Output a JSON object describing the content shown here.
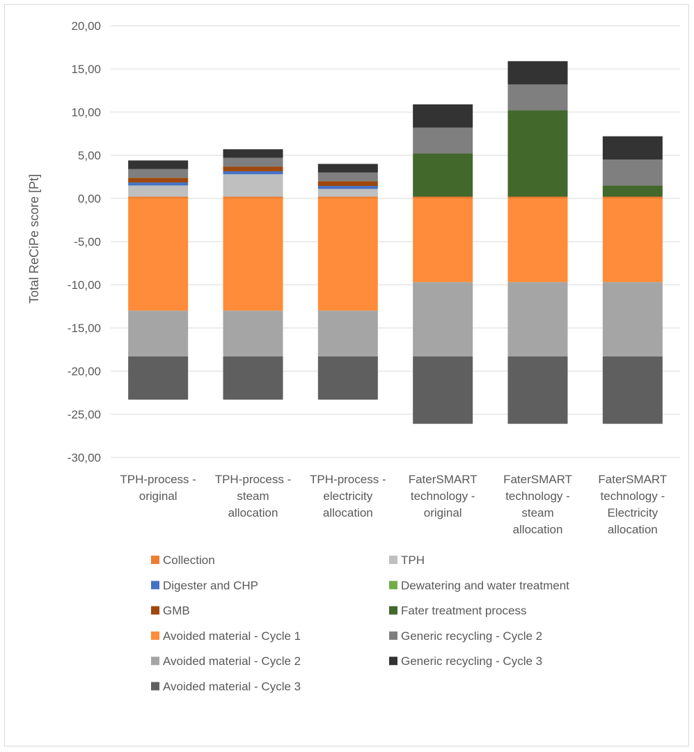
{
  "chart_data": {
    "type": "bar",
    "stacked": true,
    "title": "",
    "xlabel": "",
    "ylabel": "Total ReCiPe score [Pt]",
    "ylim": [
      -30,
      20
    ],
    "yticks": [
      20,
      15,
      10,
      5,
      0,
      -5,
      -10,
      -15,
      -20,
      -25,
      -30
    ],
    "ytick_labels": [
      "20,00",
      "15,00",
      "10,00",
      "5,00",
      "0,00",
      "-5,00",
      "-10,00",
      "-15,00",
      "-20,00",
      "-25,00",
      "-30,00"
    ],
    "grid": true,
    "legend_position": "bottom",
    "categories": [
      [
        "TPH-process -",
        "original"
      ],
      [
        "TPH-process -",
        "steam",
        "allocation"
      ],
      [
        "TPH-process -",
        "electricity",
        "allocation"
      ],
      [
        "FaterSMART",
        "technology -",
        "original"
      ],
      [
        "FaterSMART",
        "technology -",
        "steam",
        "allocation"
      ],
      [
        "FaterSMART",
        "technology -",
        "Electricity",
        "allocation"
      ]
    ],
    "series": [
      {
        "name": "Collection",
        "color": "#ed7d31",
        "values": [
          0.2,
          0.2,
          0.2,
          0.2,
          0.2,
          0.2
        ]
      },
      {
        "name": "TPH",
        "color": "#bfbfbf",
        "values": [
          1.3,
          2.6,
          0.9,
          0,
          0,
          0
        ]
      },
      {
        "name": "Digester and CHP",
        "color": "#4472c4",
        "values": [
          0.35,
          0.35,
          0.35,
          0,
          0,
          0
        ]
      },
      {
        "name": "Dewatering and water treatment",
        "color": "#70ad47",
        "values": [
          0,
          0,
          0,
          0,
          0,
          0
        ]
      },
      {
        "name": "GMB",
        "color": "#9e480e",
        "values": [
          0.55,
          0.55,
          0.55,
          0,
          0,
          0
        ]
      },
      {
        "name": "Fater treatment process",
        "color": "#43682b",
        "values": [
          0,
          0,
          0,
          5.0,
          10.0,
          1.3
        ]
      },
      {
        "name": "Avoided material - Cycle 1",
        "color": "#ff8c3a",
        "values": [
          -13.0,
          -13.0,
          -13.0,
          -9.7,
          -9.7,
          -9.7
        ]
      },
      {
        "name": "Generic recycling - Cycle 2",
        "color": "#7f7f7f",
        "values": [
          1.0,
          1.0,
          1.0,
          3.0,
          3.0,
          3.0
        ]
      },
      {
        "name": "Avoided material - Cycle 2",
        "color": "#a5a5a5",
        "values": [
          -5.3,
          -5.3,
          -5.3,
          -8.6,
          -8.6,
          -8.6
        ]
      },
      {
        "name": "Generic recycling - Cycle 3",
        "color": "#333333",
        "values": [
          1.0,
          1.0,
          1.0,
          2.7,
          2.7,
          2.7
        ]
      },
      {
        "name": "Avoided material - Cycle 3",
        "color": "#5f5f5f",
        "values": [
          -5.0,
          -5.0,
          -5.0,
          -7.8,
          -7.8,
          -7.8
        ]
      }
    ]
  }
}
